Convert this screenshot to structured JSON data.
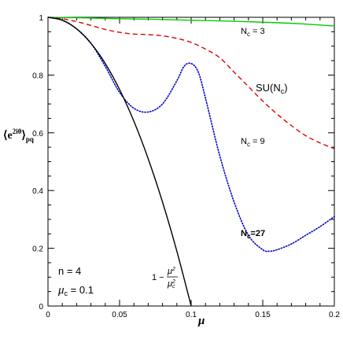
{
  "chart_data": {
    "type": "line",
    "title": "",
    "xlabel": "μ",
    "ylabel": "⟨e^{2iθ}⟩_pq",
    "xlim": [
      0,
      0.2
    ],
    "ylim": [
      0,
      1
    ],
    "x_ticks": [
      "0",
      "0.05",
      "0.1",
      "0.15",
      "0.2"
    ],
    "y_ticks": [
      "0",
      "0.2",
      "0.4",
      "0.6",
      "0.8",
      "1"
    ],
    "grid": false,
    "legend": "none",
    "series": [
      {
        "name": "N_c = 3",
        "color": "#00cc00",
        "style": "solid",
        "points": [
          [
            0,
            1
          ],
          [
            0.025,
            0.998
          ],
          [
            0.05,
            0.995
          ],
          [
            0.075,
            0.993
          ],
          [
            0.1,
            0.99
          ],
          [
            0.125,
            0.987
          ],
          [
            0.15,
            0.983
          ],
          [
            0.175,
            0.978
          ],
          [
            0.2,
            0.97
          ]
        ]
      },
      {
        "name": "N_c = 9",
        "color": "#dd0000",
        "style": "dashed",
        "points": [
          [
            0,
            1
          ],
          [
            0.01,
            0.995
          ],
          [
            0.02,
            0.985
          ],
          [
            0.03,
            0.972
          ],
          [
            0.04,
            0.958
          ],
          [
            0.05,
            0.948
          ],
          [
            0.06,
            0.942
          ],
          [
            0.07,
            0.94
          ],
          [
            0.08,
            0.936
          ],
          [
            0.09,
            0.927
          ],
          [
            0.1,
            0.913
          ],
          [
            0.11,
            0.89
          ],
          [
            0.12,
            0.86
          ],
          [
            0.13,
            0.81
          ],
          [
            0.14,
            0.76
          ],
          [
            0.15,
            0.71
          ],
          [
            0.16,
            0.665
          ],
          [
            0.17,
            0.625
          ],
          [
            0.18,
            0.59
          ],
          [
            0.19,
            0.565
          ],
          [
            0.2,
            0.545
          ]
        ]
      },
      {
        "name": "N_c=27",
        "color": "#0000cc",
        "style": "dotted",
        "points": [
          [
            0,
            1
          ],
          [
            0.01,
            0.99
          ],
          [
            0.02,
            0.96
          ],
          [
            0.03,
            0.91
          ],
          [
            0.04,
            0.83
          ],
          [
            0.05,
            0.74
          ],
          [
            0.06,
            0.685
          ],
          [
            0.07,
            0.672
          ],
          [
            0.08,
            0.7
          ],
          [
            0.09,
            0.78
          ],
          [
            0.095,
            0.83
          ],
          [
            0.1,
            0.84
          ],
          [
            0.105,
            0.81
          ],
          [
            0.11,
            0.72
          ],
          [
            0.12,
            0.52
          ],
          [
            0.13,
            0.36
          ],
          [
            0.14,
            0.245
          ],
          [
            0.15,
            0.195
          ],
          [
            0.155,
            0.19
          ],
          [
            0.16,
            0.195
          ],
          [
            0.17,
            0.215
          ],
          [
            0.18,
            0.245
          ],
          [
            0.19,
            0.275
          ],
          [
            0.2,
            0.31
          ]
        ]
      },
      {
        "name": "1-μ²/μc²",
        "color": "#000000",
        "style": "solid",
        "points": [
          [
            0,
            1
          ],
          [
            0.01,
            0.99
          ],
          [
            0.02,
            0.96
          ],
          [
            0.03,
            0.91
          ],
          [
            0.04,
            0.84
          ],
          [
            0.05,
            0.75
          ],
          [
            0.06,
            0.64
          ],
          [
            0.07,
            0.51
          ],
          [
            0.08,
            0.36
          ],
          [
            0.09,
            0.19
          ],
          [
            0.1,
            0
          ]
        ]
      }
    ],
    "annotations": {
      "nc3": "N_c = 3",
      "nc9": "N_c = 9",
      "nc27": "N_c=27",
      "sun": "SU(N_c)",
      "n": "n = 4",
      "muc": "μ_c = 0.1",
      "formula": "1-μ²/μc²"
    }
  }
}
